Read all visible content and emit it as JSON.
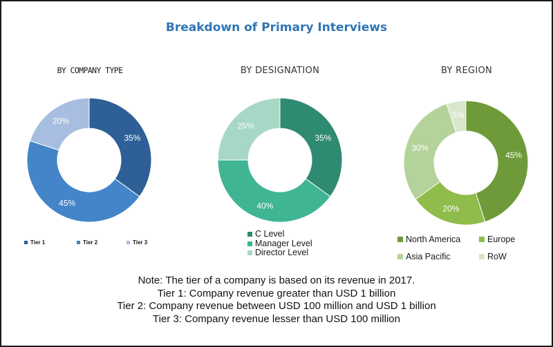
{
  "title": "Breakdown of Primary Interviews",
  "chart_data": [
    {
      "type": "pie",
      "title": "BY COMPANY TYPE",
      "categories": [
        "Tier 1",
        "Tier 2",
        "Tier 3"
      ],
      "values": [
        35,
        45,
        20
      ],
      "value_labels": [
        "35%",
        "45%",
        "20%"
      ],
      "colors": [
        "#2e5f96",
        "#4385c8",
        "#a8bee0"
      ],
      "donut": true,
      "legend": "bottom"
    },
    {
      "type": "pie",
      "title": "BY DESIGNATION",
      "categories": [
        "C Level",
        "Manager Level",
        "Director Level"
      ],
      "values": [
        35,
        40,
        25
      ],
      "value_labels": [
        "35%",
        "40%",
        "25%"
      ],
      "colors": [
        "#2e8a70",
        "#3fb594",
        "#a7d8c6"
      ],
      "donut": true,
      "legend": "bottom"
    },
    {
      "type": "pie",
      "title": "BY REGION",
      "categories": [
        "North America",
        "Europe",
        "Asia Pacific",
        "RoW"
      ],
      "values": [
        45,
        20,
        30,
        5
      ],
      "value_labels": [
        "45%",
        "20%",
        "30%",
        "5%"
      ],
      "colors": [
        "#6f9a3a",
        "#8fbc4a",
        "#b4d39a",
        "#d8e7cc"
      ],
      "donut": true,
      "legend": "bottom"
    }
  ],
  "notes": [
    "Note: The tier of a company is based on its revenue in 2017.",
    "Tier 1: Company revenue greater than USD 1 billion",
    "Tier 2: Company revenue between USD 100 million and USD 1 billion",
    "Tier 3: Company revenue lesser than USD 100 million"
  ]
}
